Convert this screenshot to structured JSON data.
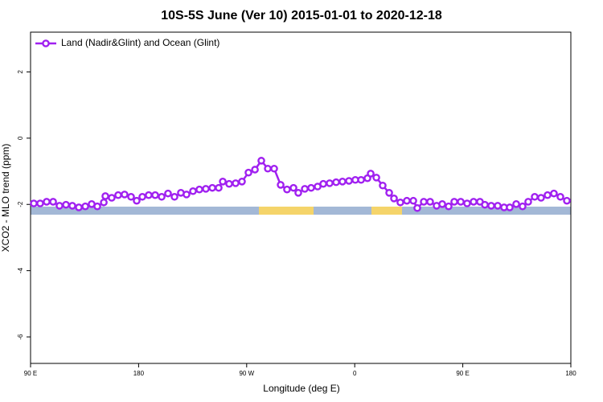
{
  "chart_data": {
    "type": "line",
    "title": "10S-5S June (Ver 10)   2015-01-01 to 2020-12-18",
    "x_label": "Longitude (deg E)",
    "y_label": "XCO2 - MLO trend (ppm)",
    "xlim": [
      90,
      540
    ],
    "xticks": [
      {
        "value": 90,
        "label": "90 E"
      },
      {
        "value": 180,
        "label": "180"
      },
      {
        "value": 270,
        "label": "90 W"
      },
      {
        "value": 360,
        "label": "0"
      },
      {
        "value": 450,
        "label": "90 E"
      },
      {
        "value": 540,
        "label": "180"
      }
    ],
    "ylim": [
      -6.8,
      3.2
    ],
    "yticks": [
      -6,
      -4,
      -2,
      0,
      2
    ],
    "legend": "top-left",
    "series": [
      {
        "name": "Land (Nadir&Glint) and Ocean (Glint)",
        "color": "#a020f0",
        "x": [
          92.7,
          98,
          103.4,
          108.8,
          114.1,
          119.5,
          124.8,
          130.2,
          135.6,
          140.9,
          145.6,
          151,
          152.3,
          157.6,
          163,
          168.3,
          173.7,
          178.4,
          183.1,
          188.4,
          193.8,
          199.2,
          204.5,
          209.9,
          215.2,
          219.9,
          225.3,
          230.6,
          236,
          241.4,
          246.7,
          250.1,
          255.4,
          260.8,
          266.1,
          271.5,
          276.9,
          282.2,
          287.6,
          292.9,
          298.3,
          303.6,
          309,
          313,
          318.4,
          323.7,
          329.1,
          333.8,
          339.1,
          344.5,
          349.8,
          355.2,
          360.5,
          365.3,
          370.6,
          373.3,
          378,
          383.3,
          388.7,
          392.7,
          398,
          403.4,
          408.8,
          412.1,
          417.5,
          422.8,
          428.2,
          432.9,
          438.2,
          442.9,
          448.3,
          453.6,
          459,
          464.3,
          468.4,
          473.7,
          479.1,
          484.4,
          489.1,
          494.5,
          499.8,
          504.5,
          509.9,
          515.2,
          520.6,
          525.9,
          531.3,
          536.7
        ],
        "values": [
          -1.97,
          -1.97,
          -1.92,
          -1.92,
          -2.04,
          -2.01,
          -2.04,
          -2.09,
          -2.06,
          -1.99,
          -2.06,
          -1.94,
          -1.75,
          -1.8,
          -1.72,
          -1.7,
          -1.77,
          -1.89,
          -1.77,
          -1.72,
          -1.72,
          -1.77,
          -1.67,
          -1.77,
          -1.65,
          -1.7,
          -1.6,
          -1.55,
          -1.53,
          -1.5,
          -1.5,
          -1.31,
          -1.38,
          -1.36,
          -1.31,
          -1.04,
          -0.95,
          -0.68,
          -0.92,
          -0.92,
          -1.41,
          -1.55,
          -1.5,
          -1.65,
          -1.53,
          -1.5,
          -1.46,
          -1.38,
          -1.36,
          -1.33,
          -1.31,
          -1.29,
          -1.26,
          -1.26,
          -1.21,
          -1.07,
          -1.19,
          -1.43,
          -1.65,
          -1.82,
          -1.94,
          -1.89,
          -1.89,
          -2.11,
          -1.92,
          -1.92,
          -2.04,
          -1.99,
          -2.06,
          -1.92,
          -1.92,
          -1.97,
          -1.92,
          -1.92,
          -2.01,
          -2.04,
          -2.04,
          -2.09,
          -2.09,
          -1.99,
          -2.06,
          -1.92,
          -1.77,
          -1.8,
          -1.72,
          -1.67,
          -1.77,
          -1.89
        ]
      }
    ]
  }
}
